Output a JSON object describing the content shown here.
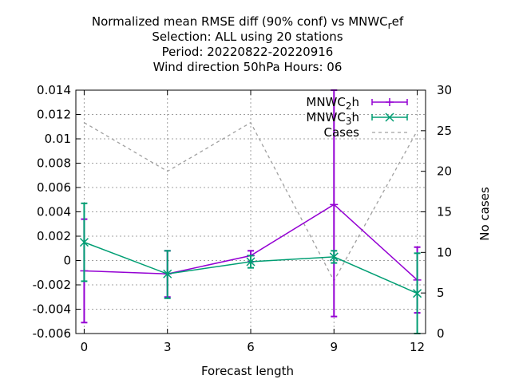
{
  "chart_data": {
    "type": "line",
    "title_lines": [
      "Normalized mean RMSE diff (90% conf) vs MNWC",
      "Selection: ALL using    20 stations",
      "Period: 20220822-20220916",
      "Wind direction 50hPa   Hours:  06"
    ],
    "title_ref_sub": "r",
    "title_ref_tail": "ef",
    "xlabel": "Forecast length",
    "ylabel_right": "No cases",
    "xlim": [
      -0.3,
      12.3
    ],
    "ylim": [
      -0.006,
      0.014
    ],
    "y2lim": [
      0,
      30
    ],
    "x_ticks": [
      {
        "value": 0,
        "label": "0"
      },
      {
        "value": 3,
        "label": "3"
      },
      {
        "value": 6,
        "label": "6"
      },
      {
        "value": 9,
        "label": "9"
      },
      {
        "value": 12,
        "label": "12"
      }
    ],
    "y_ticks": [
      {
        "value": -0.006,
        "label": "-0.006"
      },
      {
        "value": -0.004,
        "label": "-0.004"
      },
      {
        "value": -0.002,
        "label": "-0.002"
      },
      {
        "value": 0,
        "label": "0"
      },
      {
        "value": 0.002,
        "label": "0.002"
      },
      {
        "value": 0.004,
        "label": "0.004"
      },
      {
        "value": 0.006,
        "label": "0.006"
      },
      {
        "value": 0.008,
        "label": "0.008"
      },
      {
        "value": 0.01,
        "label": "0.01"
      },
      {
        "value": 0.012,
        "label": "0.012"
      },
      {
        "value": 0.014,
        "label": "0.014"
      }
    ],
    "y2_ticks": [
      {
        "value": 0,
        "label": "0"
      },
      {
        "value": 5,
        "label": "5"
      },
      {
        "value": 10,
        "label": "10"
      },
      {
        "value": 15,
        "label": "15"
      },
      {
        "value": 20,
        "label": "20"
      },
      {
        "value": 25,
        "label": "25"
      },
      {
        "value": 30,
        "label": "30"
      }
    ],
    "grid": true,
    "legend_position": "top-right",
    "series": [
      {
        "name_prefix": "MNWC",
        "name_sub": "2",
        "name_suffix": "h",
        "color": "#9400d3",
        "marker": "plus",
        "x": [
          0,
          3,
          6,
          9,
          12
        ],
        "y": [
          -0.00085,
          -0.0011,
          0.0004,
          0.0046,
          -0.0016
        ],
        "err_low": [
          -0.0051,
          -0.003,
          -0.0001,
          -0.0046,
          -0.0043
        ],
        "err_high": [
          0.0034,
          0.0008,
          0.0008,
          0.014,
          0.0011
        ]
      },
      {
        "name_prefix": "MNWC",
        "name_sub": "3",
        "name_suffix": "h",
        "color": "#009e73",
        "marker": "cross",
        "x": [
          0,
          3,
          6,
          9,
          12
        ],
        "y": [
          0.0015,
          -0.0011,
          -0.0001,
          0.0003,
          -0.0027
        ],
        "err_low": [
          -0.0017,
          -0.0031,
          -0.0006,
          -0.0002,
          -0.006
        ],
        "err_high": [
          0.0047,
          0.0008,
          0.0004,
          0.0008,
          0.0006
        ]
      }
    ],
    "cases": {
      "name": "Cases",
      "color": "#a0a0a0",
      "axis": "right",
      "x": [
        0,
        3,
        6,
        9,
        12
      ],
      "y": [
        26,
        20,
        26,
        6.5,
        25
      ]
    }
  }
}
